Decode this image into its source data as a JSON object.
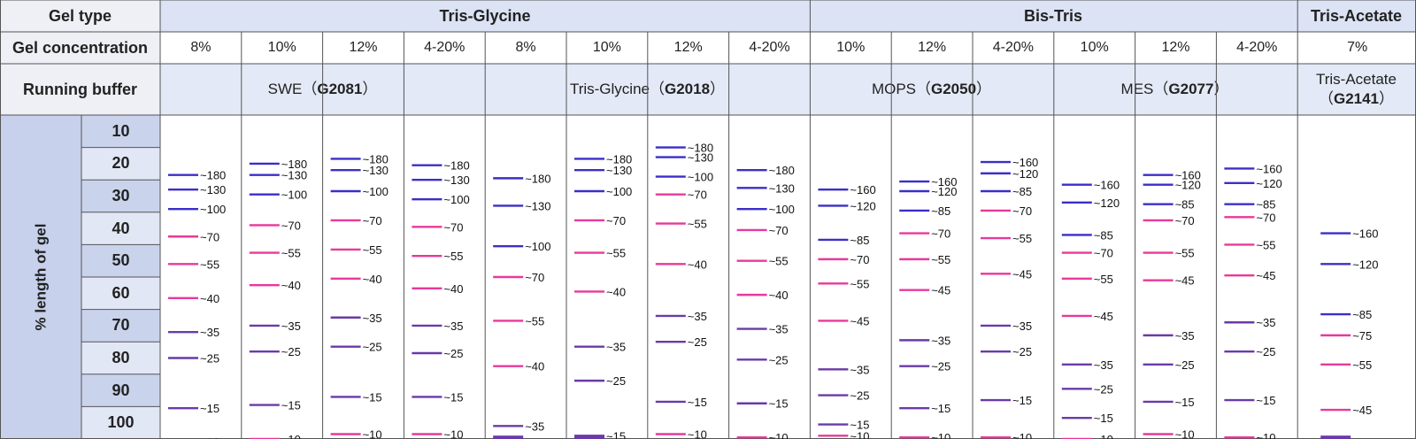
{
  "headers": {
    "gel_type": "Gel type",
    "gel_concentration": "Gel concentration",
    "running_buffer": "Running buffer",
    "pct_length": "% length of gel"
  },
  "gel_types": [
    {
      "name": "Tris-Glycine"
    },
    {
      "name": "Bis-Tris"
    },
    {
      "name": "Tris-Acetate"
    }
  ],
  "concentrations": [
    "8%",
    "10%",
    "12%",
    "4-20%",
    "8%",
    "10%",
    "12%",
    "4-20%",
    "10%",
    "12%",
    "4-20%",
    "10%",
    "12%",
    "4-20%",
    "7%"
  ],
  "buffers": [
    {
      "prefix": "SWE（",
      "code": "G2081",
      "suffix": "）"
    },
    {
      "prefix": "Tris-Glycine（",
      "code": "G2018",
      "suffix": "）"
    },
    {
      "prefix": "MOPS（",
      "code": "G2050",
      "suffix": "）"
    },
    {
      "prefix": "MES（",
      "code": "G2077",
      "suffix": "）"
    },
    {
      "prefix": "Tris-Acetate",
      "code": "G2141",
      "suffix": "）",
      "prefix2": "（"
    }
  ],
  "percent_rows": [
    "10",
    "20",
    "30",
    "40",
    "50",
    "60",
    "70",
    "80",
    "90",
    "100"
  ],
  "colors": {
    "blue": "#3a2fc8",
    "pink": "#e8399a",
    "purple": "#6a3aa8"
  },
  "chart_data": {
    "type": "table",
    "y_axis": "% length of gel",
    "y_range": [
      10,
      100
    ],
    "lanes": [
      {
        "bands": [
          {
            "kda": "180",
            "y": 23.5,
            "c": "blue"
          },
          {
            "kda": "130",
            "y": 28,
            "c": "blue"
          },
          {
            "kda": "100",
            "y": 34,
            "c": "blue"
          },
          {
            "kda": "70",
            "y": 42.5,
            "c": "pink"
          },
          {
            "kda": "55",
            "y": 51,
            "c": "pink"
          },
          {
            "kda": "40",
            "y": 61.5,
            "c": "pink"
          },
          {
            "kda": "35",
            "y": 72,
            "c": "purple"
          },
          {
            "kda": "25",
            "y": 80,
            "c": "purple"
          },
          {
            "kda": "15",
            "y": 95.5,
            "c": "purple"
          },
          {
            "kda": "10",
            "y": 106,
            "c": "pink"
          }
        ]
      },
      {
        "bands": [
          {
            "kda": "180",
            "y": 20,
            "c": "blue"
          },
          {
            "kda": "130",
            "y": 23.5,
            "c": "blue"
          },
          {
            "kda": "100",
            "y": 29.5,
            "c": "blue"
          },
          {
            "kda": "70",
            "y": 39,
            "c": "pink"
          },
          {
            "kda": "55",
            "y": 47.5,
            "c": "pink"
          },
          {
            "kda": "40",
            "y": 57.5,
            "c": "pink"
          },
          {
            "kda": "35",
            "y": 70,
            "c": "purple"
          },
          {
            "kda": "25",
            "y": 78,
            "c": "purple"
          },
          {
            "kda": "15",
            "y": 94.5,
            "c": "purple"
          },
          {
            "kda": "10",
            "y": 105,
            "c": "pink"
          }
        ]
      },
      {
        "bands": [
          {
            "kda": "180",
            "y": 18.5,
            "c": "blue"
          },
          {
            "kda": "130",
            "y": 22,
            "c": "blue"
          },
          {
            "kda": "100",
            "y": 28.5,
            "c": "blue"
          },
          {
            "kda": "70",
            "y": 37.5,
            "c": "pink"
          },
          {
            "kda": "55",
            "y": 46.5,
            "c": "pink"
          },
          {
            "kda": "40",
            "y": 55.5,
            "c": "pink"
          },
          {
            "kda": "35",
            "y": 67.5,
            "c": "purple"
          },
          {
            "kda": "25",
            "y": 76.5,
            "c": "purple"
          },
          {
            "kda": "15",
            "y": 92,
            "c": "purple"
          },
          {
            "kda": "10",
            "y": 103.5,
            "c": "pink"
          }
        ]
      },
      {
        "bands": [
          {
            "kda": "180",
            "y": 20.5,
            "c": "blue"
          },
          {
            "kda": "130",
            "y": 25,
            "c": "blue"
          },
          {
            "kda": "100",
            "y": 31,
            "c": "blue"
          },
          {
            "kda": "70",
            "y": 39.5,
            "c": "pink"
          },
          {
            "kda": "55",
            "y": 48.5,
            "c": "pink"
          },
          {
            "kda": "40",
            "y": 58.5,
            "c": "pink"
          },
          {
            "kda": "35",
            "y": 70,
            "c": "purple"
          },
          {
            "kda": "25",
            "y": 78.5,
            "c": "purple"
          },
          {
            "kda": "15",
            "y": 92,
            "c": "purple"
          },
          {
            "kda": "10",
            "y": 103.5,
            "c": "pink"
          }
        ]
      },
      {
        "bands": [
          {
            "kda": "180",
            "y": 24.5,
            "c": "blue"
          },
          {
            "kda": "130",
            "y": 33,
            "c": "blue"
          },
          {
            "kda": "100",
            "y": 45.5,
            "c": "blue"
          },
          {
            "kda": "70",
            "y": 55,
            "c": "pink"
          },
          {
            "kda": "55",
            "y": 68.5,
            "c": "pink"
          },
          {
            "kda": "40",
            "y": 82.5,
            "c": "pink"
          },
          {
            "kda": "35",
            "y": 101,
            "c": "purple"
          }
        ]
      },
      {
        "bands": [
          {
            "kda": "180",
            "y": 18.5,
            "c": "blue"
          },
          {
            "kda": "130",
            "y": 22,
            "c": "blue"
          },
          {
            "kda": "100",
            "y": 28.5,
            "c": "blue"
          },
          {
            "kda": "70",
            "y": 37.5,
            "c": "pink"
          },
          {
            "kda": "55",
            "y": 47.5,
            "c": "pink"
          },
          {
            "kda": "40",
            "y": 59.5,
            "c": "pink"
          },
          {
            "kda": "35",
            "y": 76.5,
            "c": "purple"
          },
          {
            "kda": "25",
            "y": 87,
            "c": "purple"
          },
          {
            "kda": "15",
            "y": 104,
            "c": "purple"
          }
        ]
      },
      {
        "bands": [
          {
            "kda": "180",
            "y": 15,
            "c": "blue"
          },
          {
            "kda": "130",
            "y": 18,
            "c": "blue"
          },
          {
            "kda": "100",
            "y": 24,
            "c": "blue"
          },
          {
            "kda": "70",
            "y": 29.5,
            "c": "pink"
          },
          {
            "kda": "55",
            "y": 38.5,
            "c": "pink"
          },
          {
            "kda": "40",
            "y": 51,
            "c": "pink"
          },
          {
            "kda": "35",
            "y": 67,
            "c": "purple"
          },
          {
            "kda": "25",
            "y": 75,
            "c": "purple"
          },
          {
            "kda": "15",
            "y": 93.5,
            "c": "purple"
          },
          {
            "kda": "10",
            "y": 103.5,
            "c": "pink"
          }
        ]
      },
      {
        "bands": [
          {
            "kda": "180",
            "y": 22,
            "c": "blue"
          },
          {
            "kda": "130",
            "y": 27.5,
            "c": "blue"
          },
          {
            "kda": "100",
            "y": 34,
            "c": "blue"
          },
          {
            "kda": "70",
            "y": 40.5,
            "c": "pink"
          },
          {
            "kda": "55",
            "y": 50,
            "c": "pink"
          },
          {
            "kda": "40",
            "y": 60.5,
            "c": "pink"
          },
          {
            "kda": "35",
            "y": 71,
            "c": "purple"
          },
          {
            "kda": "25",
            "y": 80.5,
            "c": "purple"
          },
          {
            "kda": "15",
            "y": 94,
            "c": "purple"
          },
          {
            "kda": "10",
            "y": 104.5,
            "c": "pink"
          }
        ]
      },
      {
        "bands": [
          {
            "kda": "160",
            "y": 28,
            "c": "blue"
          },
          {
            "kda": "120",
            "y": 33,
            "c": "blue"
          },
          {
            "kda": "85",
            "y": 43.5,
            "c": "blue"
          },
          {
            "kda": "70",
            "y": 49.5,
            "c": "pink"
          },
          {
            "kda": "55",
            "y": 57,
            "c": "pink"
          },
          {
            "kda": "45",
            "y": 68.5,
            "c": "pink"
          },
          {
            "kda": "35",
            "y": 83.5,
            "c": "purple"
          },
          {
            "kda": "25",
            "y": 91.5,
            "c": "purple"
          },
          {
            "kda": "15",
            "y": 100.5,
            "c": "purple"
          },
          {
            "kda": "10",
            "y": 104,
            "c": "pink"
          }
        ]
      },
      {
        "bands": [
          {
            "kda": "160",
            "y": 25.5,
            "c": "blue"
          },
          {
            "kda": "120",
            "y": 28.5,
            "c": "blue"
          },
          {
            "kda": "85",
            "y": 34.5,
            "c": "blue"
          },
          {
            "kda": "70",
            "y": 41.5,
            "c": "pink"
          },
          {
            "kda": "55",
            "y": 49.5,
            "c": "pink"
          },
          {
            "kda": "45",
            "y": 59,
            "c": "pink"
          },
          {
            "kda": "35",
            "y": 74.5,
            "c": "purple"
          },
          {
            "kda": "25",
            "y": 82.5,
            "c": "purple"
          },
          {
            "kda": "15",
            "y": 95.5,
            "c": "purple"
          },
          {
            "kda": "10",
            "y": 104.5,
            "c": "pink"
          }
        ]
      },
      {
        "bands": [
          {
            "kda": "160",
            "y": 19.5,
            "c": "blue"
          },
          {
            "kda": "120",
            "y": 23,
            "c": "blue"
          },
          {
            "kda": "85",
            "y": 28.5,
            "c": "blue"
          },
          {
            "kda": "70",
            "y": 34.5,
            "c": "pink"
          },
          {
            "kda": "55",
            "y": 43,
            "c": "pink"
          },
          {
            "kda": "45",
            "y": 54,
            "c": "pink"
          },
          {
            "kda": "35",
            "y": 70,
            "c": "purple"
          },
          {
            "kda": "25",
            "y": 78,
            "c": "purple"
          },
          {
            "kda": "15",
            "y": 93,
            "c": "purple"
          },
          {
            "kda": "10",
            "y": 104.5,
            "c": "pink"
          }
        ]
      },
      {
        "bands": [
          {
            "kda": "160",
            "y": 26.5,
            "c": "blue"
          },
          {
            "kda": "120",
            "y": 32,
            "c": "blue"
          },
          {
            "kda": "85",
            "y": 42,
            "c": "blue"
          },
          {
            "kda": "70",
            "y": 47.5,
            "c": "pink"
          },
          {
            "kda": "55",
            "y": 55.5,
            "c": "pink"
          },
          {
            "kda": "45",
            "y": 67,
            "c": "pink"
          },
          {
            "kda": "35",
            "y": 82,
            "c": "purple"
          },
          {
            "kda": "25",
            "y": 89.5,
            "c": "purple"
          },
          {
            "kda": "15",
            "y": 98.5,
            "c": "purple"
          },
          {
            "kda": "10",
            "y": 105,
            "c": "pink"
          }
        ]
      },
      {
        "bands": [
          {
            "kda": "160",
            "y": 23.5,
            "c": "blue"
          },
          {
            "kda": "120",
            "y": 26.5,
            "c": "blue"
          },
          {
            "kda": "85",
            "y": 32.5,
            "c": "blue"
          },
          {
            "kda": "70",
            "y": 37.5,
            "c": "pink"
          },
          {
            "kda": "55",
            "y": 47.5,
            "c": "pink"
          },
          {
            "kda": "45",
            "y": 56,
            "c": "pink"
          },
          {
            "kda": "35",
            "y": 73,
            "c": "purple"
          },
          {
            "kda": "25",
            "y": 82,
            "c": "purple"
          },
          {
            "kda": "15",
            "y": 93.5,
            "c": "purple"
          },
          {
            "kda": "10",
            "y": 103.5,
            "c": "pink"
          }
        ]
      },
      {
        "bands": [
          {
            "kda": "160",
            "y": 21.5,
            "c": "blue"
          },
          {
            "kda": "120",
            "y": 26,
            "c": "blue"
          },
          {
            "kda": "85",
            "y": 32.5,
            "c": "blue"
          },
          {
            "kda": "70",
            "y": 36.5,
            "c": "pink"
          },
          {
            "kda": "55",
            "y": 45,
            "c": "pink"
          },
          {
            "kda": "45",
            "y": 54.5,
            "c": "pink"
          },
          {
            "kda": "35",
            "y": 69,
            "c": "purple"
          },
          {
            "kda": "25",
            "y": 78,
            "c": "purple"
          },
          {
            "kda": "15",
            "y": 93,
            "c": "purple"
          },
          {
            "kda": "10",
            "y": 104.5,
            "c": "pink"
          }
        ]
      },
      {
        "bands": [
          {
            "kda": "160",
            "y": 41.5,
            "c": "blue"
          },
          {
            "kda": "120",
            "y": 51,
            "c": "blue"
          },
          {
            "kda": "85",
            "y": 66.5,
            "c": "blue"
          },
          {
            "kda": "75",
            "y": 73,
            "c": "pink"
          },
          {
            "kda": "55",
            "y": 82,
            "c": "pink"
          },
          {
            "kda": "45",
            "y": 96,
            "c": "pink"
          }
        ]
      }
    ],
    "dye_front_lanes": [
      4,
      5,
      14
    ]
  }
}
